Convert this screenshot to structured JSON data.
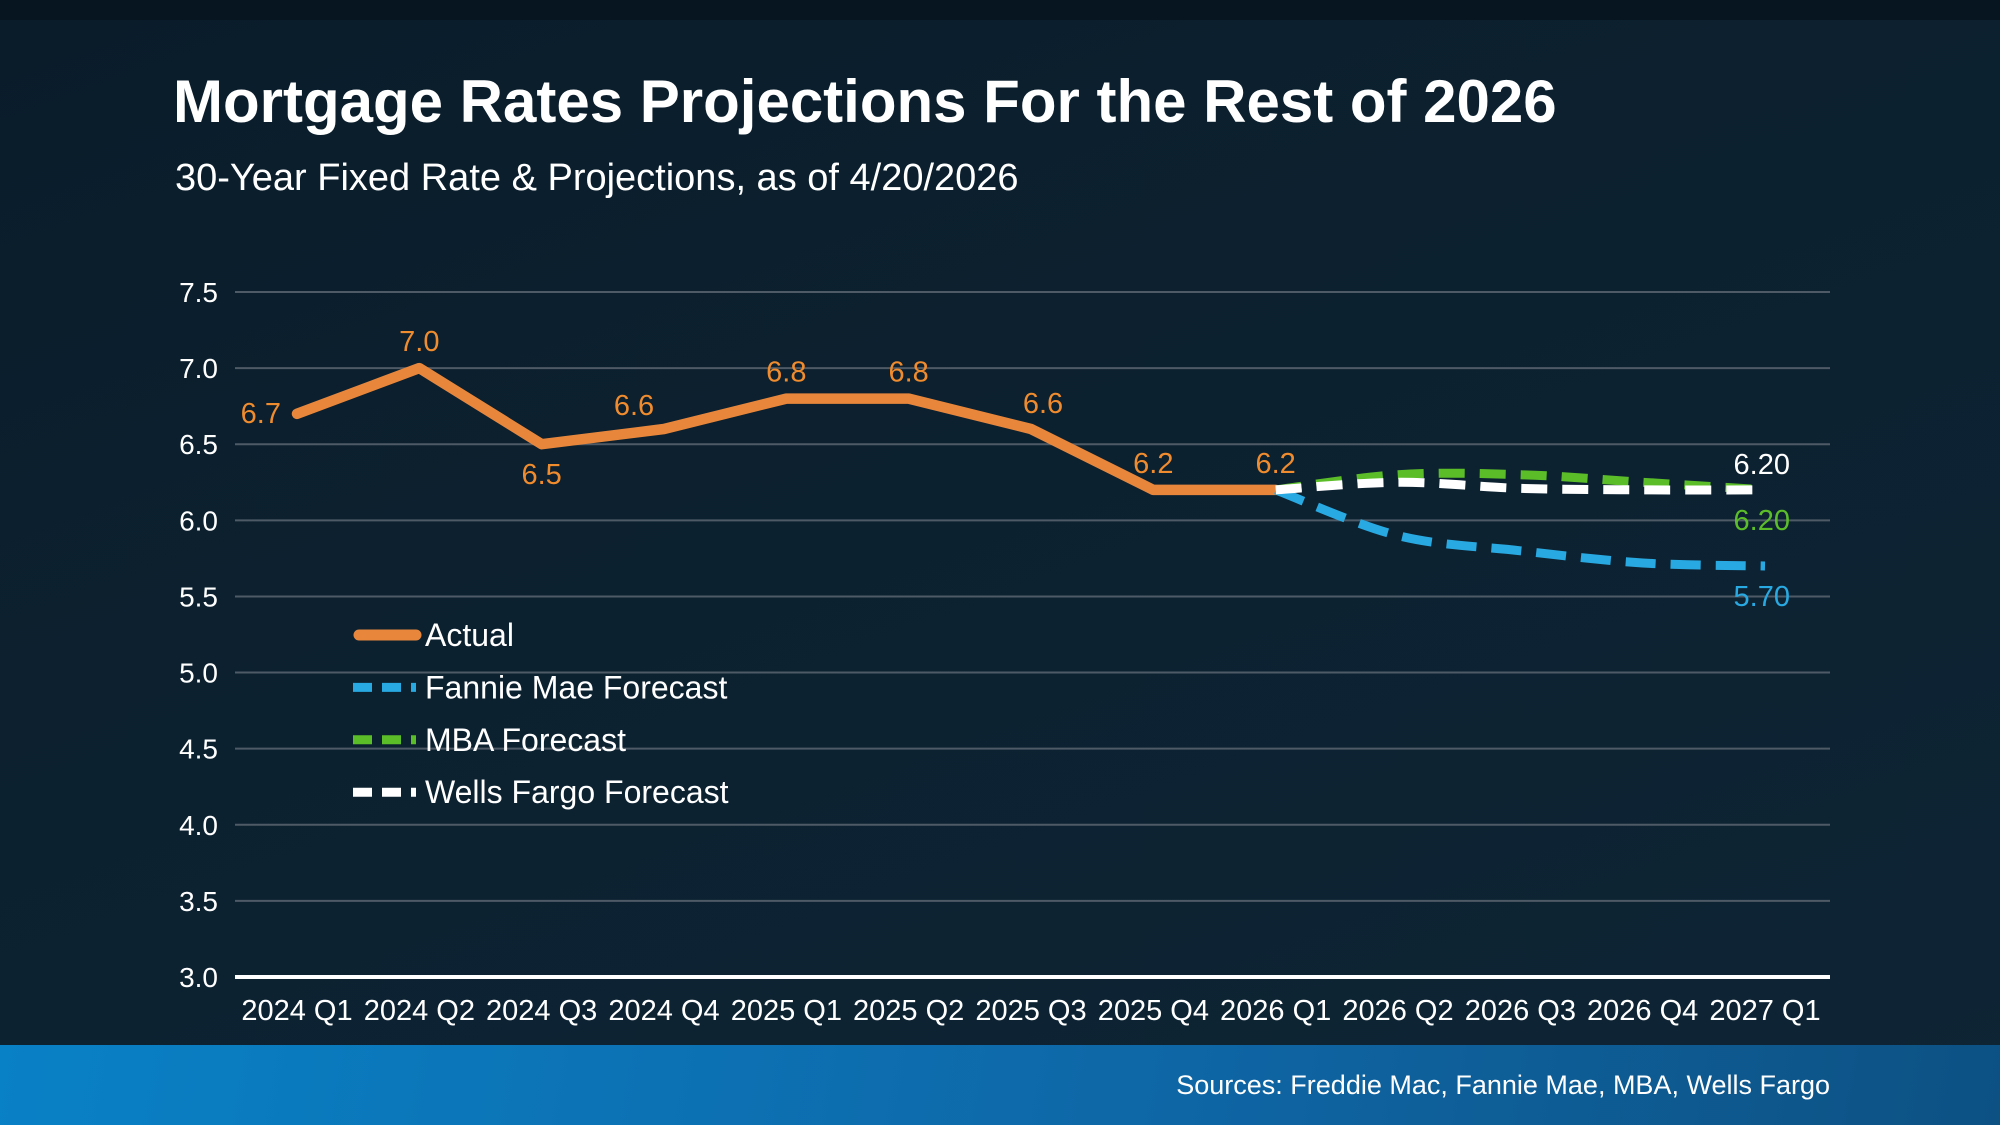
{
  "header": {
    "title": "Mortgage Rates Projections For the Rest of 2026",
    "subtitle": "30-Year Fixed Rate & Projections, as of 4/20/2026"
  },
  "footer": {
    "sources": "Sources: Freddie Mac, Fannie Mae, MBA, Wells Fargo"
  },
  "colors": {
    "background": "#0c2130",
    "top_band": "#06151f",
    "footer_left": "#0981c6",
    "footer_right": "#0d5183",
    "gridline": "#4e5a66",
    "axis_line": "#ffffff",
    "text": "#ffffff"
  },
  "chart_data": {
    "type": "line",
    "title": "Mortgage Rates Projections For the Rest of 2026",
    "subtitle": "30-Year Fixed Rate & Projections, as of 4/20/2026",
    "categories": [
      "2024 Q1",
      "2024 Q2",
      "2024 Q3",
      "2024 Q4",
      "2025 Q1",
      "2025 Q2",
      "2025 Q3",
      "2025 Q4",
      "2026 Q1",
      "2026 Q2",
      "2026 Q3",
      "2026 Q4",
      "2027 Q1"
    ],
    "y_axis": {
      "min": 3.0,
      "max": 7.5,
      "step": 0.5
    },
    "grid": true,
    "legend_position": "inside-left-middle",
    "series": [
      {
        "name": "Actual",
        "style": "solid",
        "color": "#E8873C",
        "label_color": "#F08C2D",
        "start_index": 0,
        "values": [
          6.7,
          7.0,
          6.5,
          6.6,
          6.8,
          6.8,
          6.6,
          6.2,
          6.2
        ],
        "point_labels": [
          "6.7",
          "7.0",
          "6.5",
          "6.6",
          "6.8",
          "6.8",
          "6.6",
          "6.2",
          "6.2"
        ],
        "label_positions": [
          "left",
          "above",
          "below",
          "above-left",
          "above",
          "above",
          "above-right",
          "above",
          "above"
        ]
      },
      {
        "name": "Fannie Mae Forecast",
        "style": "dashed",
        "color": "#29A9E1",
        "start_index": 8,
        "values": [
          6.2,
          5.9,
          5.8,
          5.72,
          5.7
        ],
        "end_label": "5.70",
        "end_label_pos": "below"
      },
      {
        "name": "MBA Forecast",
        "style": "dashed",
        "color": "#5BBE29",
        "start_index": 8,
        "values": [
          6.2,
          6.3,
          6.3,
          6.25,
          6.2
        ],
        "end_label": "6.20",
        "end_label_pos": "below"
      },
      {
        "name": "Wells Fargo Forecast",
        "style": "dashed",
        "color": "#FFFFFF",
        "start_index": 8,
        "values": [
          6.2,
          6.25,
          6.21,
          6.2,
          6.2
        ],
        "end_label": "6.20",
        "end_label_pos": "above"
      }
    ]
  }
}
